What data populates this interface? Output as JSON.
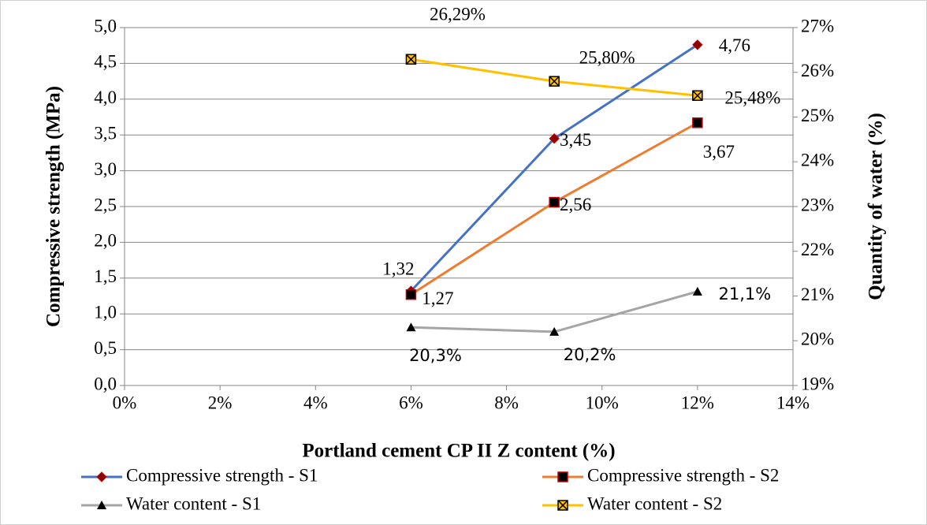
{
  "chart_data": {
    "type": "line",
    "x_label": "Portland cement  CP II Z content (%)",
    "y_label": "Compressive strength (MPa)",
    "y2_label": "Quantity of water (%)",
    "x": [
      6,
      9,
      12
    ],
    "xlim": [
      0,
      14
    ],
    "xticks": [
      {
        "value": 0,
        "label": "0%"
      },
      {
        "value": 2,
        "label": "2%"
      },
      {
        "value": 4,
        "label": "4%"
      },
      {
        "value": 6,
        "label": "6%"
      },
      {
        "value": 8,
        "label": "8%"
      },
      {
        "value": 10,
        "label": "10%"
      },
      {
        "value": 12,
        "label": "12%"
      },
      {
        "value": 14,
        "label": "14%"
      }
    ],
    "ylim": [
      0,
      5
    ],
    "yticks": [
      {
        "value": 0,
        "label": "0,0"
      },
      {
        "value": 0.5,
        "label": "0,5"
      },
      {
        "value": 1,
        "label": "1,0"
      },
      {
        "value": 1.5,
        "label": "1,5"
      },
      {
        "value": 2,
        "label": "2,0"
      },
      {
        "value": 2.5,
        "label": "2,5"
      },
      {
        "value": 3,
        "label": "3,0"
      },
      {
        "value": 3.5,
        "label": "3,5"
      },
      {
        "value": 4,
        "label": "4,0"
      },
      {
        "value": 4.5,
        "label": "4,5"
      },
      {
        "value": 5,
        "label": "5,0"
      }
    ],
    "y2lim": [
      19,
      27
    ],
    "y2ticks": [
      {
        "value": 19,
        "label": "19%"
      },
      {
        "value": 20,
        "label": "20%"
      },
      {
        "value": 21,
        "label": "21%"
      },
      {
        "value": 22,
        "label": "22%"
      },
      {
        "value": 23,
        "label": "23%"
      },
      {
        "value": 24,
        "label": "24%"
      },
      {
        "value": 25,
        "label": "25%"
      },
      {
        "value": 26,
        "label": "26%"
      },
      {
        "value": 27,
        "label": "27%"
      }
    ],
    "grid": true,
    "legend": "bottom",
    "series": [
      {
        "name": "Compressive strength - S1",
        "color": "#4472c4",
        "marker": "diamond",
        "values": [
          1.32,
          3.45,
          4.76
        ],
        "value_labels": [
          "1,32",
          "3,45",
          "4,76"
        ]
      },
      {
        "name": "Compressive strength - S2",
        "color": "#ed7d31",
        "marker": "square",
        "values": [
          1.27,
          2.56,
          3.67
        ],
        "value_labels": [
          "1,27",
          "2,56",
          "3,67"
        ]
      },
      {
        "name": "Water content - S1",
        "color": "#a5a5a5",
        "marker": "triangle",
        "axis": "y2",
        "values": [
          20.3,
          20.2,
          21.1
        ],
        "value_labels": [
          "20,3%",
          "20,2%",
          "21,1%"
        ]
      },
      {
        "name": "Water content - S2",
        "color": "#ffc000",
        "marker": "x-square",
        "axis": "y2",
        "values": [
          26.29,
          25.8,
          25.48
        ],
        "value_labels": [
          "26,29%",
          "25,80%",
          "25,48%"
        ]
      }
    ]
  }
}
